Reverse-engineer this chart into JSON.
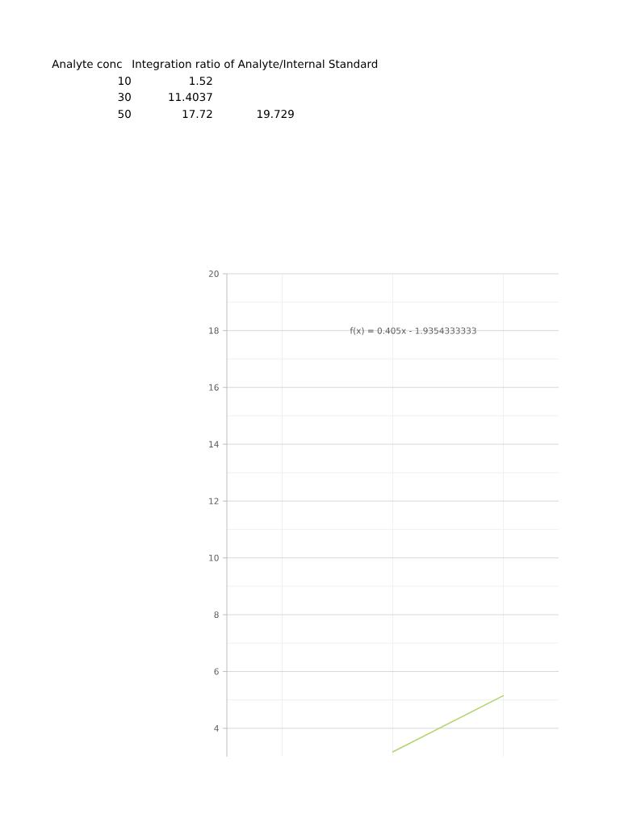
{
  "chart_data": {
    "type": "line",
    "categories": [
      null,
      null,
      null
    ],
    "values": [
      null,
      3.17,
      5.15
    ],
    "color": "#afd46c",
    "ylim": [
      3,
      20
    ],
    "yticks": [
      4,
      6,
      8,
      10,
      12,
      14,
      16,
      18,
      20
    ],
    "grid": true,
    "tick_labels": "y",
    "annotations": [
      "Analyte conc",
      "Integration ratio of Analyte/Internal Standard",
      "10",
      "1.52",
      "30",
      "11.4037",
      "50",
      "17.72",
      "19.729",
      "f(x) = 0.405x - 1.9354333333"
    ]
  }
}
